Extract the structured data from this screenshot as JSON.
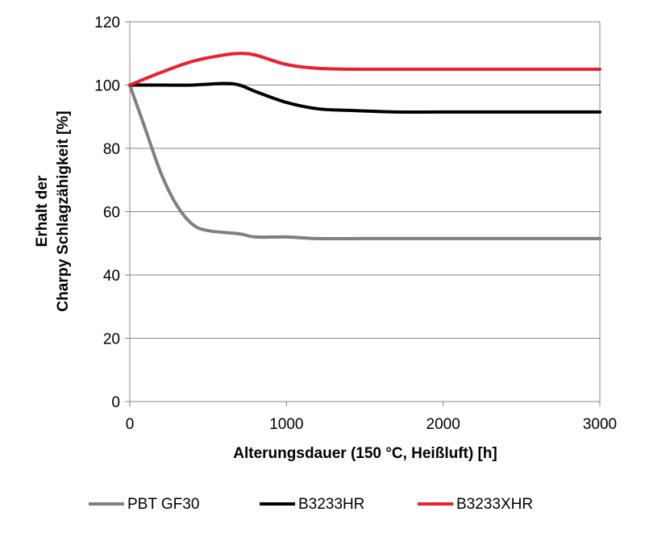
{
  "chart_data": {
    "type": "line",
    "title": "",
    "xlabel": "Alterungsdauer (150 °C, Heißluft) [h]",
    "ylabel_lines": [
      "Erhalt der",
      "Charpy Schlagzähigkeit [%]"
    ],
    "xlim": [
      0,
      3000
    ],
    "ylim": [
      0,
      120
    ],
    "x_ticks": [
      0,
      1000,
      2000,
      3000
    ],
    "y_ticks": [
      0,
      20,
      40,
      60,
      80,
      100,
      120
    ],
    "grid": "horizontal",
    "legend_position": "bottom",
    "series": [
      {
        "name": "PBT GF30",
        "color": "#808080",
        "points": [
          [
            0,
            100
          ],
          [
            100,
            86
          ],
          [
            200,
            72
          ],
          [
            300,
            62
          ],
          [
            400,
            56
          ],
          [
            500,
            54
          ],
          [
            700,
            53
          ],
          [
            800,
            52
          ],
          [
            1000,
            52
          ],
          [
            1200,
            51.5
          ],
          [
            1500,
            51.5
          ],
          [
            2000,
            51.5
          ],
          [
            2500,
            51.5
          ],
          [
            3000,
            51.5
          ]
        ]
      },
      {
        "name": "B3233HR",
        "color": "#000000",
        "points": [
          [
            0,
            100
          ],
          [
            200,
            100
          ],
          [
            400,
            100
          ],
          [
            600,
            100.5
          ],
          [
            700,
            100
          ],
          [
            800,
            98
          ],
          [
            1000,
            94.5
          ],
          [
            1200,
            92.5
          ],
          [
            1400,
            92
          ],
          [
            1700,
            91.5
          ],
          [
            2000,
            91.5
          ],
          [
            2500,
            91.5
          ],
          [
            3000,
            91.5
          ]
        ]
      },
      {
        "name": "B3233XHR",
        "color": "#e8212e",
        "points": [
          [
            0,
            100
          ],
          [
            200,
            104
          ],
          [
            400,
            107.5
          ],
          [
            600,
            109.5
          ],
          [
            700,
            110
          ],
          [
            800,
            109.5
          ],
          [
            1000,
            106.5
          ],
          [
            1200,
            105.3
          ],
          [
            1500,
            105
          ],
          [
            2000,
            105
          ],
          [
            2500,
            105
          ],
          [
            3000,
            105
          ]
        ]
      }
    ]
  }
}
